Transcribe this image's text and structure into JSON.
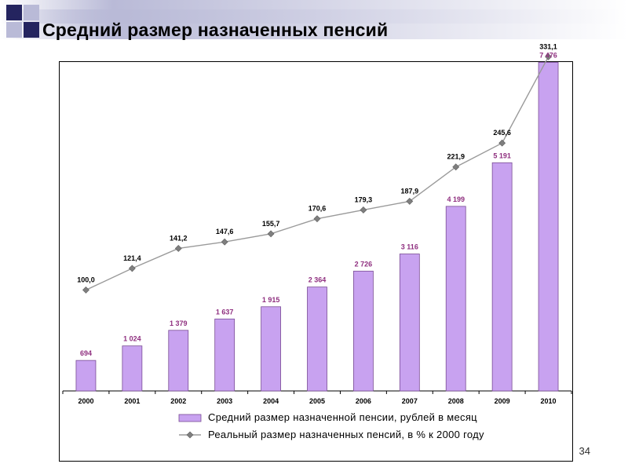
{
  "slide": {
    "title": "Средний размер назначенных пенсий",
    "page_number": "34"
  },
  "colors": {
    "bar": "#c8a2f0",
    "bar_stroke": "#7a4d95",
    "line": "#9a9a9a",
    "marker": "#7f7f7f",
    "title": "#000000",
    "bar_label": "#8f2f7f"
  },
  "chart_data": {
    "type": "bar",
    "categories": [
      "2000",
      "2001",
      "2002",
      "2003",
      "2004",
      "2005",
      "2006",
      "2007",
      "2008",
      "2009",
      "2010"
    ],
    "series": [
      {
        "name": "Средний размер назначенной пенсии, рублей в месяц",
        "type": "bar",
        "values": [
          694,
          1024,
          1379,
          1637,
          1915,
          2364,
          2726,
          3116,
          4199,
          5191,
          7476
        ],
        "labels": [
          "694",
          "1 024",
          "1 379",
          "1 637",
          "1 915",
          "2 364",
          "2 726",
          "3 116",
          "4 199",
          "5 191",
          "7 476"
        ]
      },
      {
        "name": "Реальный размер назначенных пенсий, в % к 2000 году",
        "type": "line",
        "values": [
          100.0,
          121.4,
          141.2,
          147.6,
          155.7,
          170.6,
          179.3,
          187.9,
          221.9,
          245.6,
          331.1
        ],
        "labels": [
          "100,0",
          "121,4",
          "141,2",
          "147,6",
          "155,7",
          "170,6",
          "179,3",
          "187,9",
          "221,9",
          "245,6",
          "331,1"
        ]
      }
    ],
    "title": "",
    "xlabel": "",
    "ylabel": "",
    "bar_ylim": [
      0,
      8000
    ],
    "line_ylim": [
      0,
      350
    ],
    "grid": false,
    "legend_position": "bottom"
  }
}
